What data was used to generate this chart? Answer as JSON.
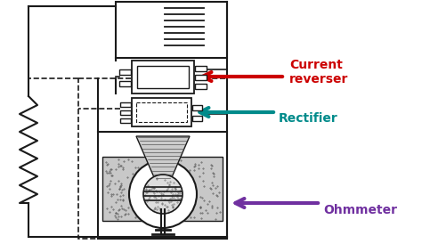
{
  "background_color": "#ffffff",
  "labels": {
    "current_reverser": "Current\nreverser",
    "rectifier": "Rectifier",
    "ohmmeter": "Ohmmeter"
  },
  "label_colors": {
    "current_reverser": "#cc0000",
    "rectifier": "#008B8B",
    "ohmmeter": "#7030a0"
  },
  "arrow_colors": {
    "current_reverser": "#cc0000",
    "rectifier": "#008B8B",
    "ohmmeter": "#7030a0"
  },
  "line_color": "#1a1a1a",
  "dashed_color": "#1a1a1a"
}
